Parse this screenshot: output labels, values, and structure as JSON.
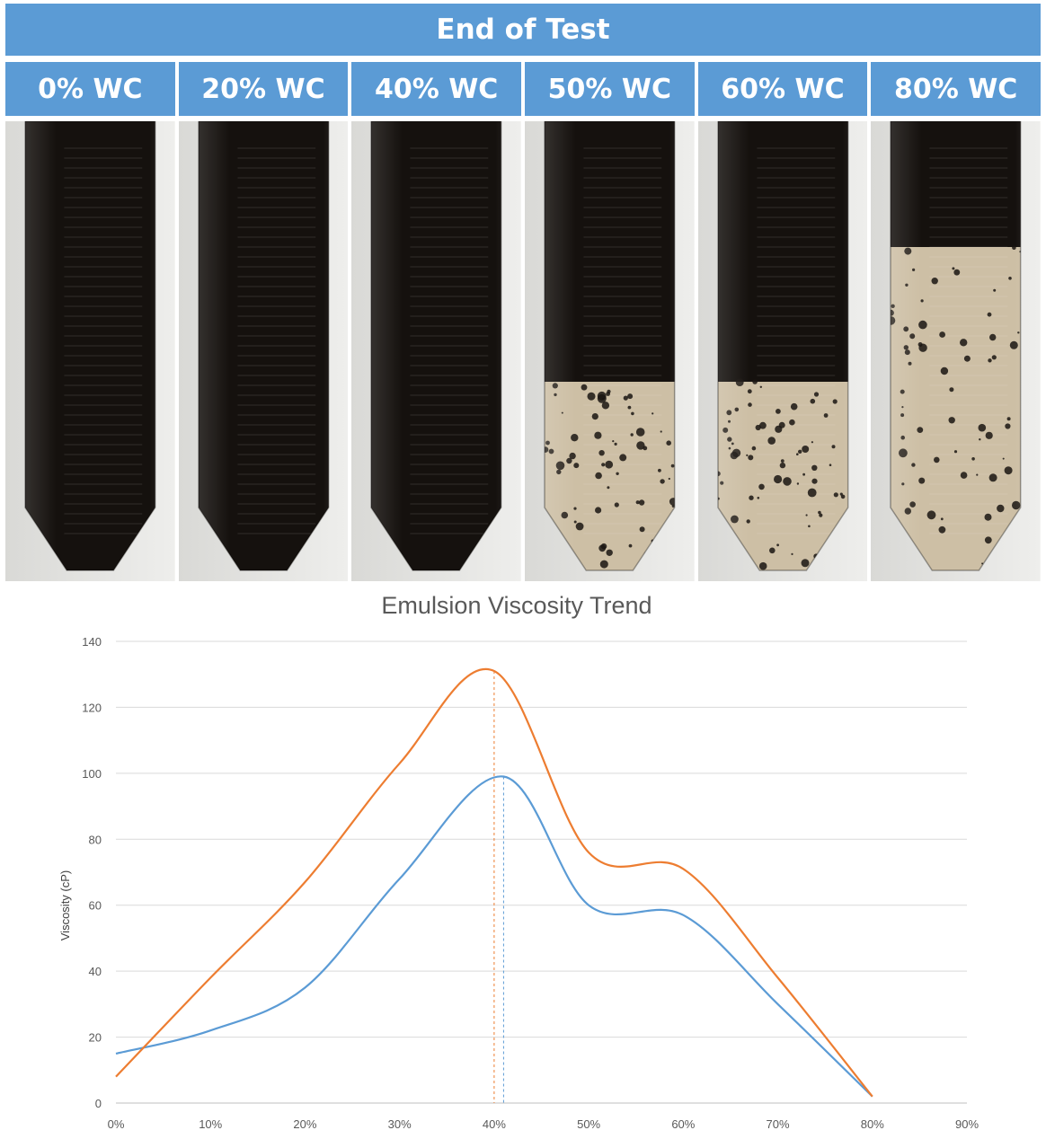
{
  "header": {
    "title": "End of Test"
  },
  "samples": [
    {
      "label": "0% WC",
      "oil_fraction": 1.0,
      "droplets": false
    },
    {
      "label": "20% WC",
      "oil_fraction": 1.0,
      "droplets": false
    },
    {
      "label": "40% WC",
      "oil_fraction": 1.0,
      "droplets": false
    },
    {
      "label": "50% WC",
      "oil_fraction": 0.58,
      "droplets": true
    },
    {
      "label": "60% WC",
      "oil_fraction": 0.58,
      "droplets": true
    },
    {
      "label": "80% WC",
      "oil_fraction": 0.28,
      "droplets": true
    }
  ],
  "colors": {
    "header_bg": "#5b9bd5",
    "series_blue": "#5b9bd5",
    "series_orange": "#ed7d31",
    "oil": "#15110e",
    "water": "#cdbfa5"
  },
  "chart_data": {
    "type": "line",
    "title": "Emulsion Viscosity Trend",
    "xlabel": "",
    "ylabel": "Viscosity (cP)",
    "xlim": [
      0,
      90
    ],
    "ylim": [
      0,
      140
    ],
    "x_ticks": [
      "0%",
      "10%",
      "20%",
      "30%",
      "40%",
      "50%",
      "60%",
      "70%",
      "80%",
      "90%"
    ],
    "y_ticks": [
      "0",
      "20",
      "40",
      "60",
      "80",
      "100",
      "120",
      "140"
    ],
    "grid": true,
    "legend": "none",
    "series": [
      {
        "color": "#5b9bd5",
        "x": [
          0,
          10,
          20,
          30,
          41,
          50,
          60,
          70,
          80
        ],
        "values": [
          15,
          22,
          35,
          68,
          99,
          60,
          57,
          30,
          2
        ],
        "peak_x": 41
      },
      {
        "color": "#ed7d31",
        "x": [
          0,
          10,
          20,
          30,
          40,
          50,
          60,
          70,
          80
        ],
        "values": [
          8,
          38,
          67,
          103,
          131,
          76,
          71,
          38,
          2
        ],
        "peak_x": 40
      }
    ]
  }
}
